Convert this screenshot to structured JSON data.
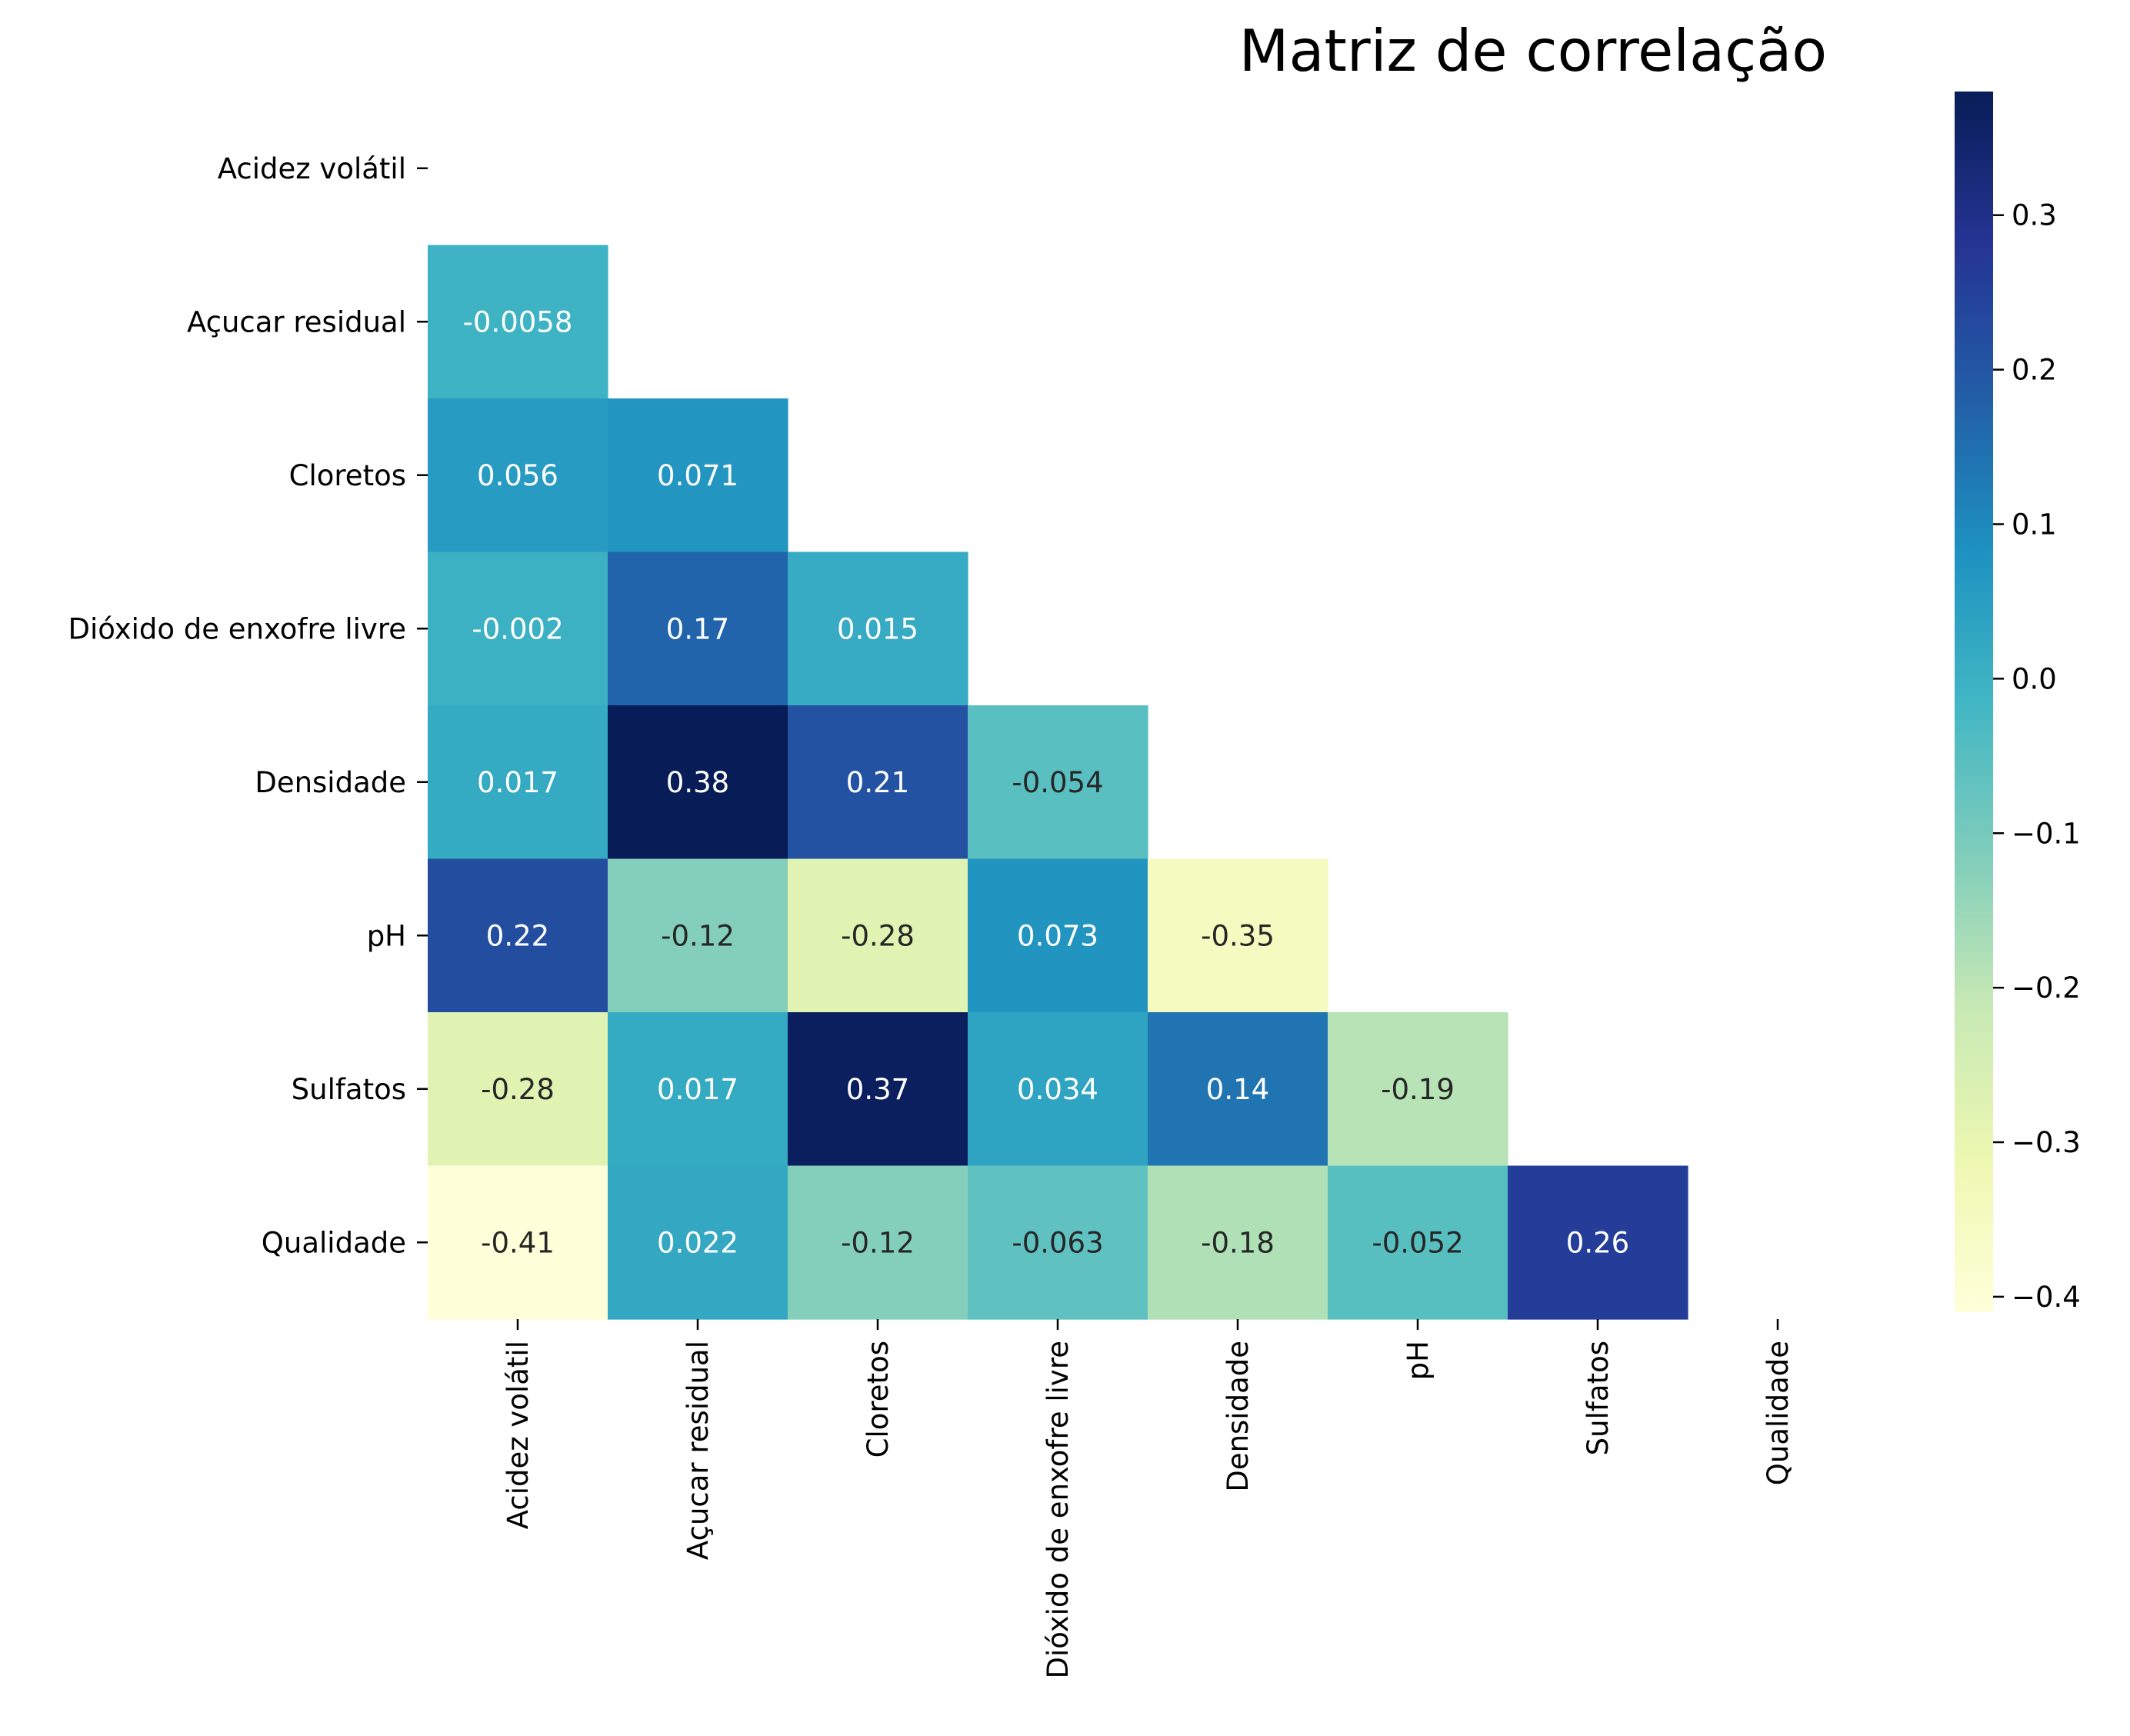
{
  "chart_data": {
    "type": "heatmap",
    "title": "Matriz de correlação",
    "xlabel": "",
    "ylabel": "",
    "mask": "upper-triangle-including-diagonal",
    "variables": [
      "Acidez volátil",
      "Açucar residual",
      "Cloretos",
      "Dióxido de enxofre livre",
      "Densidade",
      "pH",
      "Sulfatos",
      "Qualidade"
    ],
    "matrix": [
      [
        null,
        null,
        null,
        null,
        null,
        null,
        null,
        null
      ],
      [
        -0.0058,
        null,
        null,
        null,
        null,
        null,
        null,
        null
      ],
      [
        0.056,
        0.071,
        null,
        null,
        null,
        null,
        null,
        null
      ],
      [
        -0.002,
        0.17,
        0.015,
        null,
        null,
        null,
        null,
        null
      ],
      [
        0.017,
        0.38,
        0.21,
        -0.054,
        null,
        null,
        null,
        null
      ],
      [
        0.22,
        -0.12,
        -0.28,
        0.073,
        -0.35,
        null,
        null,
        null
      ],
      [
        -0.28,
        0.017,
        0.37,
        0.034,
        0.14,
        -0.19,
        null,
        null
      ],
      [
        -0.41,
        0.022,
        -0.12,
        -0.063,
        -0.18,
        -0.052,
        0.26,
        null
      ]
    ],
    "labels": [
      [
        null,
        null,
        null,
        null,
        null,
        null,
        null,
        null
      ],
      [
        "-0.0058",
        null,
        null,
        null,
        null,
        null,
        null,
        null
      ],
      [
        "0.056",
        "0.071",
        null,
        null,
        null,
        null,
        null,
        null
      ],
      [
        "-0.002",
        "0.17",
        "0.015",
        null,
        null,
        null,
        null,
        null
      ],
      [
        "0.017",
        "0.38",
        "0.21",
        "-0.054",
        null,
        null,
        null,
        null
      ],
      [
        "0.22",
        "-0.12",
        "-0.28",
        "0.073",
        "-0.35",
        null,
        null,
        null
      ],
      [
        "-0.28",
        "0.017",
        "0.37",
        "0.034",
        "0.14",
        "-0.19",
        null,
        null
      ],
      [
        "-0.41",
        "0.022",
        "-0.12",
        "-0.063",
        "-0.18",
        "-0.052",
        "0.26",
        null
      ]
    ],
    "colormap": "YlGnBu",
    "vmin": -0.41,
    "vmax": 0.38,
    "colorbar_ticks": [
      {
        "value": 0.3,
        "label": "0.3"
      },
      {
        "value": 0.2,
        "label": "0.2"
      },
      {
        "value": 0.1,
        "label": "0.1"
      },
      {
        "value": 0.0,
        "label": "0.0"
      },
      {
        "value": -0.1,
        "label": "−0.1"
      },
      {
        "value": -0.2,
        "label": "−0.2"
      },
      {
        "value": -0.3,
        "label": "−0.3"
      },
      {
        "value": -0.4,
        "label": "−0.4"
      }
    ],
    "colors": {
      "light_text": "#ffffff",
      "dark_text": "#262626",
      "colormap_stops": [
        "#ffffd9",
        "#edf8b1",
        "#c7e9b4",
        "#7fcdbb",
        "#41b6c4",
        "#1d91c0",
        "#225ea8",
        "#253494",
        "#081d58"
      ]
    }
  }
}
